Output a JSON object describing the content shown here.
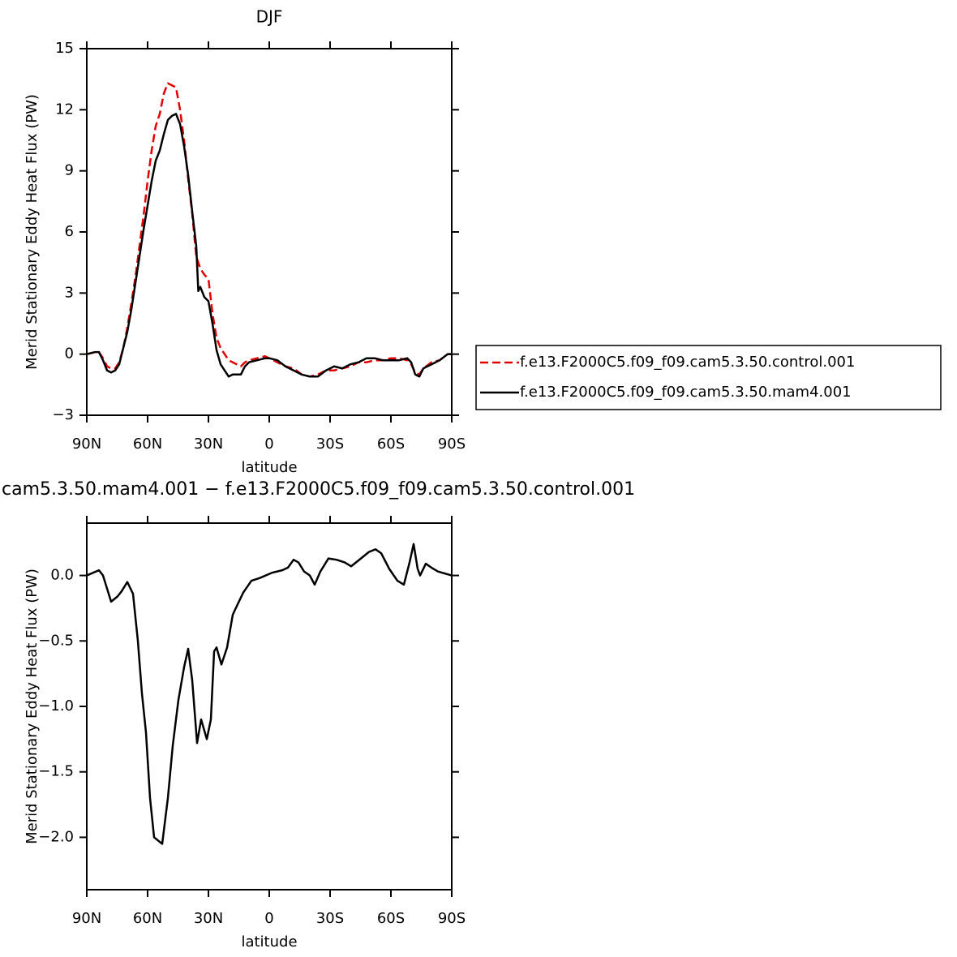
{
  "chart_data": [
    {
      "type": "line",
      "title": "DJF",
      "ylabel": "Merid Stationary Eddy Heat Flux (PW)",
      "xlabel": "latitude",
      "x": [
        90,
        86,
        84,
        82,
        80,
        78,
        76,
        74,
        72,
        70,
        68,
        66,
        64,
        62,
        60,
        58,
        56,
        54,
        52,
        50,
        48,
        46,
        44,
        42,
        40,
        38,
        36,
        35,
        34,
        32,
        30,
        28,
        26,
        24,
        22,
        20,
        18,
        16,
        14,
        12,
        10,
        6,
        2,
        0,
        -4,
        -8,
        -12,
        -16,
        -20,
        -24,
        -28,
        -32,
        -36,
        -40,
        -44,
        -48,
        -52,
        -56,
        -60,
        -64,
        -68,
        -70,
        -72,
        -74,
        -76,
        -80,
        -84,
        -88,
        -90
      ],
      "series": [
        {
          "name": "f.e13.F2000C5.f09_f09.cam5.3.50.control.001",
          "color": "#e00000",
          "dash": true,
          "values": [
            0,
            0.1,
            0.1,
            -0.2,
            -0.6,
            -0.7,
            -0.7,
            -0.4,
            0.3,
            1.3,
            2.5,
            3.8,
            5.3,
            6.8,
            8.5,
            10.0,
            11.2,
            11.8,
            12.8,
            13.3,
            13.2,
            13.1,
            12.0,
            10.5,
            8.6,
            6.9,
            4.8,
            4.5,
            4.2,
            3.9,
            3.7,
            2.0,
            0.8,
            0.3,
            0.0,
            -0.3,
            -0.4,
            -0.5,
            -0.6,
            -0.4,
            -0.3,
            -0.2,
            -0.1,
            -0.2,
            -0.4,
            -0.6,
            -0.7,
            -1.0,
            -1.1,
            -1.0,
            -0.8,
            -0.8,
            -0.7,
            -0.6,
            -0.4,
            -0.4,
            -0.3,
            -0.3,
            -0.2,
            -0.2,
            -0.3,
            -0.5,
            -0.9,
            -1.0,
            -0.7,
            -0.4,
            -0.3,
            0.0,
            0.0
          ]
        },
        {
          "name": "f.e13.F2000C5.f09_f09.cam5.3.50.mam4.001",
          "color": "#000000",
          "dash": false,
          "values": [
            0,
            0.1,
            0.1,
            -0.3,
            -0.8,
            -0.9,
            -0.8,
            -0.5,
            0.3,
            1.1,
            2.2,
            3.5,
            4.8,
            6.1,
            7.3,
            8.5,
            9.5,
            10.0,
            10.8,
            11.5,
            11.7,
            11.8,
            11.3,
            10.2,
            8.8,
            7.0,
            5.3,
            3.1,
            3.3,
            2.8,
            2.6,
            1.5,
            0.2,
            -0.5,
            -0.8,
            -1.1,
            -1.0,
            -1.0,
            -1.0,
            -0.6,
            -0.4,
            -0.3,
            -0.2,
            -0.2,
            -0.3,
            -0.6,
            -0.8,
            -1.0,
            -1.1,
            -1.1,
            -0.8,
            -0.6,
            -0.7,
            -0.5,
            -0.4,
            -0.2,
            -0.2,
            -0.3,
            -0.3,
            -0.3,
            -0.2,
            -0.4,
            -1.0,
            -1.1,
            -0.7,
            -0.5,
            -0.3,
            0.0,
            0.0
          ]
        }
      ],
      "xlim": [
        90,
        -90
      ],
      "xticks": [
        {
          "value": 90,
          "label": "90N"
        },
        {
          "value": 60,
          "label": "60N"
        },
        {
          "value": 30,
          "label": "30N"
        },
        0,
        {
          "value": -30,
          "label": "30S"
        },
        {
          "value": -60,
          "label": "60S"
        },
        {
          "value": -90,
          "label": "90S"
        }
      ],
      "ylim": [
        -3,
        15
      ],
      "yticks": [
        {
          "value": -3,
          "label": "−3"
        },
        0,
        3,
        6,
        9,
        12,
        15
      ],
      "legend": "right"
    },
    {
      "type": "line",
      "title": "cam5.3.50.mam4.001 − f.e13.F2000C5.f09_f09.cam5.3.50.control.001",
      "ylabel": "Merid Stationary Eddy Heat Flux (PW)",
      "xlabel": "latitude",
      "x": [
        90,
        84,
        82,
        78,
        74.8,
        72.8,
        70,
        67.2,
        64.8,
        62.8,
        60.8,
        58.8,
        56.8,
        52.8,
        50,
        47.6,
        44.8,
        42,
        40,
        38,
        35.6,
        33.6,
        30.8,
        28.8,
        27.2,
        26,
        23.6,
        20.8,
        18,
        15.6,
        12.8,
        8.8,
        4.8,
        -1.2,
        -6.4,
        -9.2,
        -12,
        -14.4,
        -17.2,
        -20,
        -22.4,
        -25.2,
        -29.2,
        -33.2,
        -37.2,
        -40.4,
        -45.2,
        -49.2,
        -52.4,
        -55.2,
        -59.2,
        -63.2,
        -66.4,
        -69.2,
        -71.2,
        -73.2,
        -74.4,
        -77.2,
        -80,
        -83.2,
        -90
      ],
      "values": [
        0,
        0.04,
        0,
        -0.2,
        -0.16,
        -0.12,
        -0.05,
        -0.14,
        -0.5,
        -0.9,
        -1.2,
        -1.7,
        -2.0,
        -2.05,
        -1.7,
        -1.3,
        -0.95,
        -0.7,
        -0.56,
        -0.8,
        -1.28,
        -1.1,
        -1.25,
        -1.1,
        -0.58,
        -0.55,
        -0.68,
        -0.55,
        -0.3,
        -0.22,
        -0.13,
        -0.04,
        -0.02,
        0.02,
        0.04,
        0.06,
        0.12,
        0.1,
        0.03,
        0,
        -0.07,
        0.03,
        0.13,
        0.12,
        0.1,
        0.07,
        0.13,
        0.18,
        0.2,
        0.17,
        0.05,
        -0.04,
        -0.07,
        0.1,
        0.24,
        0.05,
        0,
        0.09,
        0.06,
        0.03,
        0
      ],
      "color": "#000000",
      "xlim": [
        90,
        -90
      ],
      "xticks": [
        {
          "value": 90,
          "label": "90N"
        },
        {
          "value": 60,
          "label": "60N"
        },
        {
          "value": 30,
          "label": "30N"
        },
        0,
        {
          "value": -30,
          "label": "30S"
        },
        {
          "value": -60,
          "label": "60S"
        },
        {
          "value": -90,
          "label": "90S"
        }
      ],
      "ylim": [
        -2.4,
        0.4
      ],
      "yticks": [
        {
          "value": -2,
          "label": "−2.0"
        },
        {
          "value": -1.5,
          "label": "−1.5"
        },
        {
          "value": -1,
          "label": "−1.0"
        },
        {
          "value": -0.5,
          "label": "−0.5"
        },
        {
          "value": 0,
          "label": "0.0"
        }
      ]
    }
  ]
}
